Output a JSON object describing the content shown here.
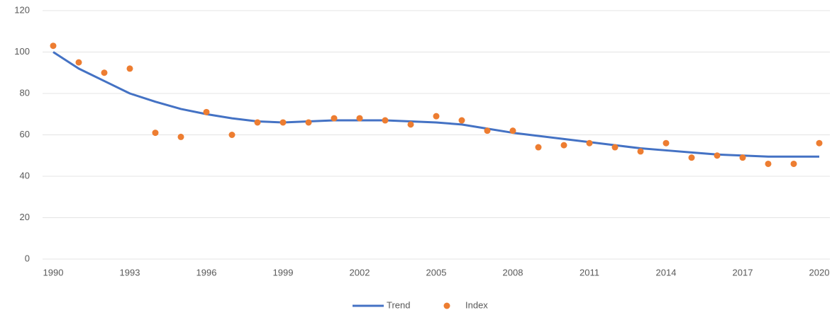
{
  "chart_data": {
    "type": "line",
    "x": [
      1990,
      1991,
      1992,
      1993,
      1994,
      1995,
      1996,
      1997,
      1998,
      1999,
      2000,
      2001,
      2002,
      2003,
      2004,
      2005,
      2006,
      2007,
      2008,
      2009,
      2010,
      2011,
      2012,
      2013,
      2014,
      2015,
      2016,
      2017,
      2018,
      2019,
      2020
    ],
    "series": [
      {
        "name": "Trend",
        "type": "line",
        "color": "#4472c4",
        "values": [
          100,
          92,
          86,
          80,
          76,
          72.5,
          70,
          68,
          66.5,
          66,
          66.5,
          67,
          67,
          67,
          66.5,
          66,
          65,
          63,
          61,
          59.5,
          58,
          56.5,
          55,
          53.5,
          52.5,
          51.5,
          50.5,
          50,
          49.5,
          49.5,
          49.5
        ]
      },
      {
        "name": "Index",
        "type": "scatter",
        "color": "#ed7d31",
        "values": [
          103,
          95,
          90,
          92,
          61,
          59,
          71,
          60,
          66,
          66,
          66,
          68,
          68,
          67,
          65,
          69,
          67,
          62,
          62,
          54,
          55,
          56,
          54,
          52,
          56,
          49,
          50,
          49,
          46,
          46,
          56
        ]
      }
    ],
    "xlim": [
      1990,
      2020
    ],
    "xticks": [
      1990,
      1993,
      1996,
      1999,
      2002,
      2005,
      2008,
      2011,
      2014,
      2017,
      2020
    ],
    "ylim": [
      0,
      120
    ],
    "yticks": [
      0,
      20,
      40,
      60,
      80,
      100,
      120
    ],
    "grid": true,
    "legend": "bottom"
  }
}
